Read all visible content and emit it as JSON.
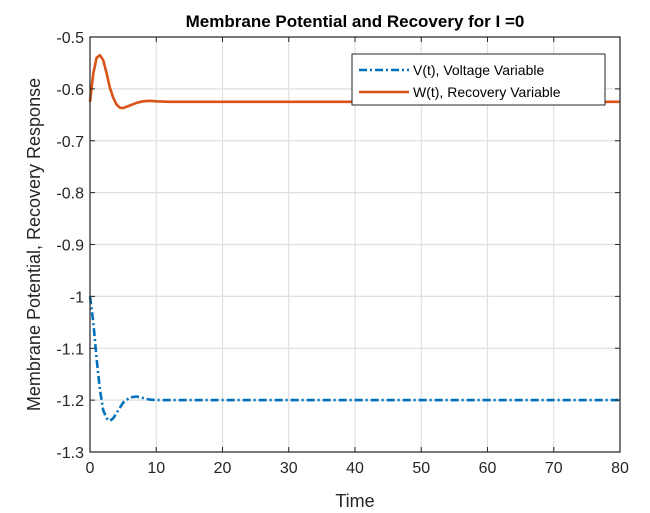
{
  "chart_data": {
    "type": "line",
    "title": "Membrane Potential and Recovery for I =0",
    "xlabel": "Time",
    "ylabel": "Membrane Potential, Recovery Response",
    "xlim": [
      0,
      80
    ],
    "ylim": [
      -1.3,
      -0.5
    ],
    "xticks": [
      "0",
      "10",
      "20",
      "30",
      "40",
      "50",
      "60",
      "70",
      "80"
    ],
    "yticks": [
      "-0.5",
      "-0.6",
      "-0.7",
      "-0.8",
      "-0.9",
      "-1",
      "-1.1",
      "-1.2",
      "-1.3"
    ],
    "grid": true,
    "legend_position": "top-right",
    "series": [
      {
        "name": "V(t), Voltage Variable",
        "color": "#0072BD",
        "dash": "dash-dot",
        "x": [
          0,
          0.5,
          1,
          1.5,
          2,
          2.5,
          3,
          3.5,
          4,
          5,
          6,
          7,
          8,
          9,
          10,
          12,
          15,
          20,
          30,
          40,
          50,
          60,
          70,
          80
        ],
        "y": [
          -1.0,
          -1.05,
          -1.12,
          -1.18,
          -1.22,
          -1.235,
          -1.24,
          -1.235,
          -1.225,
          -1.205,
          -1.195,
          -1.193,
          -1.196,
          -1.199,
          -1.2,
          -1.2,
          -1.2,
          -1.2,
          -1.2,
          -1.2,
          -1.2,
          -1.2,
          -1.2,
          -1.2
        ]
      },
      {
        "name": "W(t), Recovery Variable",
        "color": "#D95319",
        "dash": "solid",
        "x": [
          0,
          0.5,
          1,
          1.5,
          2,
          2.5,
          3,
          3.5,
          4,
          4.5,
          5,
          6,
          7,
          8,
          9,
          10,
          12,
          15,
          20,
          30,
          40,
          50,
          60,
          70,
          80
        ],
        "y": [
          -0.625,
          -0.57,
          -0.54,
          -0.535,
          -0.545,
          -0.57,
          -0.598,
          -0.617,
          -0.63,
          -0.636,
          -0.637,
          -0.632,
          -0.627,
          -0.624,
          -0.623,
          -0.624,
          -0.625,
          -0.625,
          -0.625,
          -0.625,
          -0.625,
          -0.625,
          -0.625,
          -0.625,
          -0.625
        ]
      }
    ]
  }
}
